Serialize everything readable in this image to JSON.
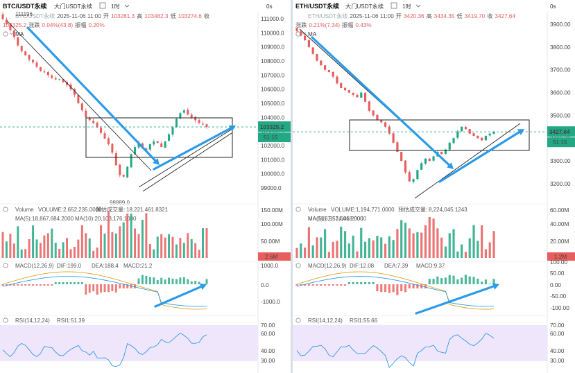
{
  "charts": [
    {
      "id": "btc",
      "symbol": "BTC/USDT永续",
      "exchange": "大门USDT永续",
      "interval": "1时",
      "header_right": "0s",
      "symbol_overlay": "BTC/USDT永续",
      "ohlc_line": {
        "date": "2025-11-06 11:00",
        "open_label": "开",
        "open": "103281.3",
        "high_label": "高",
        "high": "103482.3",
        "low_label": "低",
        "low": "103274.6",
        "close_label": "收"
      },
      "change_line": {
        "last": "103325.2",
        "change_label": "涨跌",
        "change": "0.04%(43.8)",
        "amplitude_label": "振幅",
        "amplitude": "0.20%"
      },
      "ma_label": "MA",
      "price_axis": [
        "111000.0",
        "110000.0",
        "109000.0",
        "108000.0",
        "107000.0",
        "106000.0",
        "105000.0",
        "104000.0",
        "103000.0",
        "102000.0",
        "101000.0",
        "100000.0",
        "99000.0"
      ],
      "top_price_marker": "111196",
      "last_price_badge": "103325.2",
      "countdown_badge": "51:15",
      "low_price_marker": "98889.0",
      "volume_panel": {
        "title": "Volume",
        "volume_text": "VOLUME:2,652,235.0000",
        "est_label": "预估成交量:",
        "est_value": "18,221,461.8321",
        "ma5_text": "MA(5):18,867,684.2000",
        "ma10_text": "MA(10):20,103,176.1000",
        "axis": [
          "150.00M",
          "100.00M",
          "50.00M"
        ],
        "badge": "2.6M",
        "badge_color": "#e85d5d"
      },
      "macd_panel": {
        "title": "MACD(12,26,9)",
        "dif_text": "DIF:199.0",
        "dea_text": "DEA:188.4",
        "macd_text": "MACD:21.2",
        "axis": [
          "1000.0",
          "0.0",
          "-1000.0"
        ]
      },
      "rsi_panel": {
        "title": "RSI(14,12,24)",
        "rsi_text": "RSI1:51.39",
        "axis": [
          "70.00",
          "60.00",
          "40.00",
          "30.00"
        ]
      }
    },
    {
      "id": "eth",
      "symbol": "ETH/USDT永续",
      "exchange": "大门USDT永续",
      "interval": "1时",
      "header_right": "0s",
      "symbol_overlay": "ETH/USDT永续",
      "ohlc_line": {
        "date": "2025-11-06 11:00",
        "open_label": "开",
        "open": "3420.36",
        "high_label": "高",
        "high": "3434.35",
        "low_label": "低",
        "low": "3419.70",
        "close_label": "收",
        "close": "3427.64"
      },
      "change_line": {
        "change_label": "涨跌",
        "change": "0.21%(7.34)",
        "amplitude_label": "振幅",
        "amplitude": "0.43%"
      },
      "ma_label": "MA",
      "price_axis": [
        "3900.00",
        "3800.00",
        "3700.00",
        "3600.00",
        "3500.00",
        "3400.00",
        "3300.00",
        "3200.00"
      ],
      "last_price_badge": "3427.64",
      "countdown_badge": "51:15",
      "volume_panel": {
        "title": "Volume",
        "volume_text": "VOLUME:1,194,771.0000",
        "est_label": "预估成交量:",
        "est_value": "8,224,045.1243",
        "ma5_text": "MA(5):5,951,601.2000",
        "ma10_text": "MA(10):7,574,468.0000",
        "axis": [
          "60.00M",
          "40.00M",
          "20.00M"
        ],
        "badge": "1.2M",
        "badge_color": "#e85d5d"
      },
      "macd_panel": {
        "title": "MACD(12,26,9)",
        "dif_text": "DIF:12.08",
        "dea_text": "DEA:7.39",
        "macd_text": "MACD:9.37",
        "axis": [
          "100.00",
          "50.00",
          "0.00",
          "-50.00",
          "-100.00"
        ]
      },
      "rsi_panel": {
        "title": "RSI(14,12,24)",
        "rsi_text": "RSI1:55.66",
        "axis": [
          "70.00",
          "60.00",
          "40.00",
          "30.00"
        ]
      }
    }
  ],
  "colors": {
    "up": "#22a884",
    "down": "#e85d5d",
    "arrow": "#2b9be8",
    "last_price_badge": "#22a884",
    "rsi_band": "#efe6fb"
  },
  "chart_data": [
    {
      "type": "candlestick",
      "title": "BTC/USDT永续 1时",
      "ylim": [
        98889,
        111196
      ],
      "close_path": [
        110950,
        110600,
        110200,
        109700,
        109100,
        108700,
        108400,
        108100,
        107900,
        107600,
        107300,
        107200,
        107000,
        106800,
        106700,
        106700,
        106500,
        106300,
        106000,
        105600,
        105000,
        104500,
        104000,
        103800,
        103600,
        103300,
        102900,
        102500,
        102100,
        101500,
        100600,
        99900,
        99800,
        100500,
        101400,
        101900,
        102200,
        101800,
        101700,
        102100,
        102300,
        102200,
        101900,
        102300,
        102800,
        103300,
        103900,
        104300,
        104500,
        104200,
        104000,
        103800,
        103600,
        103500,
        103325
      ],
      "annotations": [
        "111196",
        "98889.0"
      ],
      "last_price": 103325.2
    },
    {
      "type": "candlestick",
      "title": "ETH/USDT永续 1时",
      "ylim": [
        3180,
        3940
      ],
      "close_path": [
        3870,
        3850,
        3830,
        3800,
        3770,
        3740,
        3720,
        3700,
        3690,
        3670,
        3640,
        3620,
        3610,
        3600,
        3590,
        3580,
        3600,
        3560,
        3520,
        3500,
        3480,
        3470,
        3450,
        3420,
        3380,
        3340,
        3300,
        3250,
        3210,
        3220,
        3260,
        3290,
        3310,
        3300,
        3320,
        3340,
        3330,
        3350,
        3380,
        3400,
        3430,
        3450,
        3440,
        3420,
        3410,
        3400,
        3390,
        3410,
        3420,
        3427.64
      ],
      "last_price": 3427.64
    }
  ]
}
